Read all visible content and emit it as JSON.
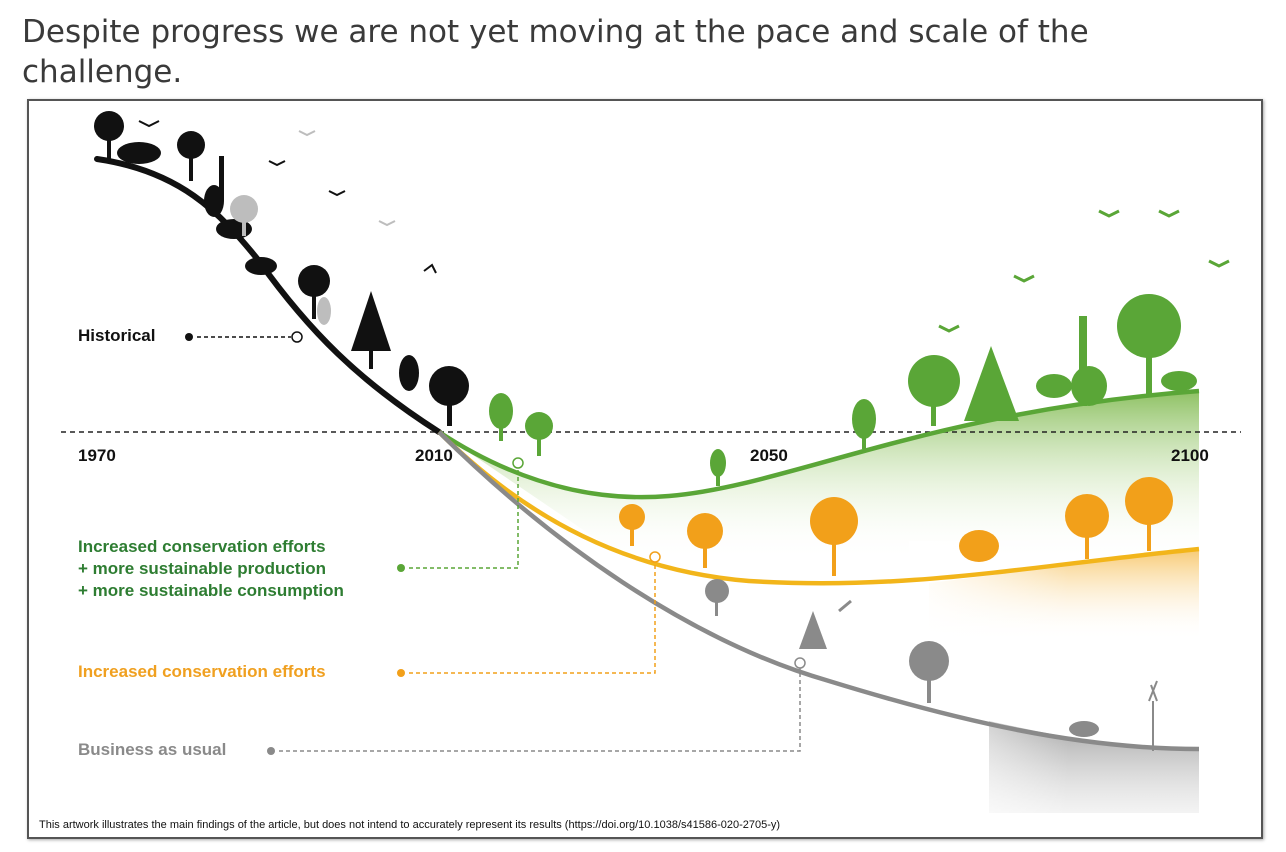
{
  "headline": "Despite progress we are not yet moving at the pace and scale of the challenge.",
  "diagram": {
    "years": [
      "1970",
      "2010",
      "2050",
      "2100"
    ],
    "legend": {
      "historical": "Historical",
      "green_lines": [
        "Increased conservation efforts",
        "+ more sustainable production",
        "+ more sustainable consumption"
      ],
      "orange": "Increased conservation efforts",
      "gray": "Business as usual"
    },
    "caption": "This artwork illustrates the main findings of the article, but does not intend to accurately represent its results (https://doi.org/10.1038/s41586-020-2705-y)",
    "colors": {
      "historical": "#111111",
      "green": "#5aa637",
      "orange": "#f2b51a",
      "gray": "#8a8a8a",
      "green_label": "#2e7d32",
      "orange_label": "#f0a020",
      "gray_label": "#8a8a8a"
    }
  }
}
